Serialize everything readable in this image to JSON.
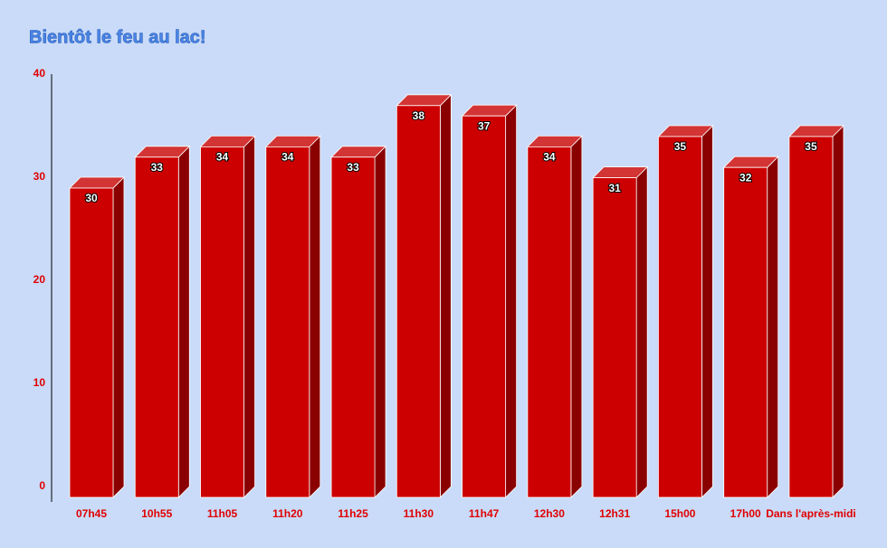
{
  "chart_data": {
    "type": "bar3d",
    "title": "Bientôt le feu au lac!",
    "categories": [
      "07h45",
      "10h55",
      "11h05",
      "11h20",
      "11h25",
      "11h30",
      "11h47",
      "12h30",
      "12h31",
      "15h00",
      "17h00",
      "Dans l'après-midi"
    ],
    "values": [
      30,
      33,
      34,
      34,
      33,
      38,
      37,
      34,
      31,
      35,
      32,
      35
    ],
    "color": "#cc0000",
    "ylim": [
      0,
      40
    ],
    "yticks": [
      0,
      10,
      20,
      30,
      40
    ]
  }
}
